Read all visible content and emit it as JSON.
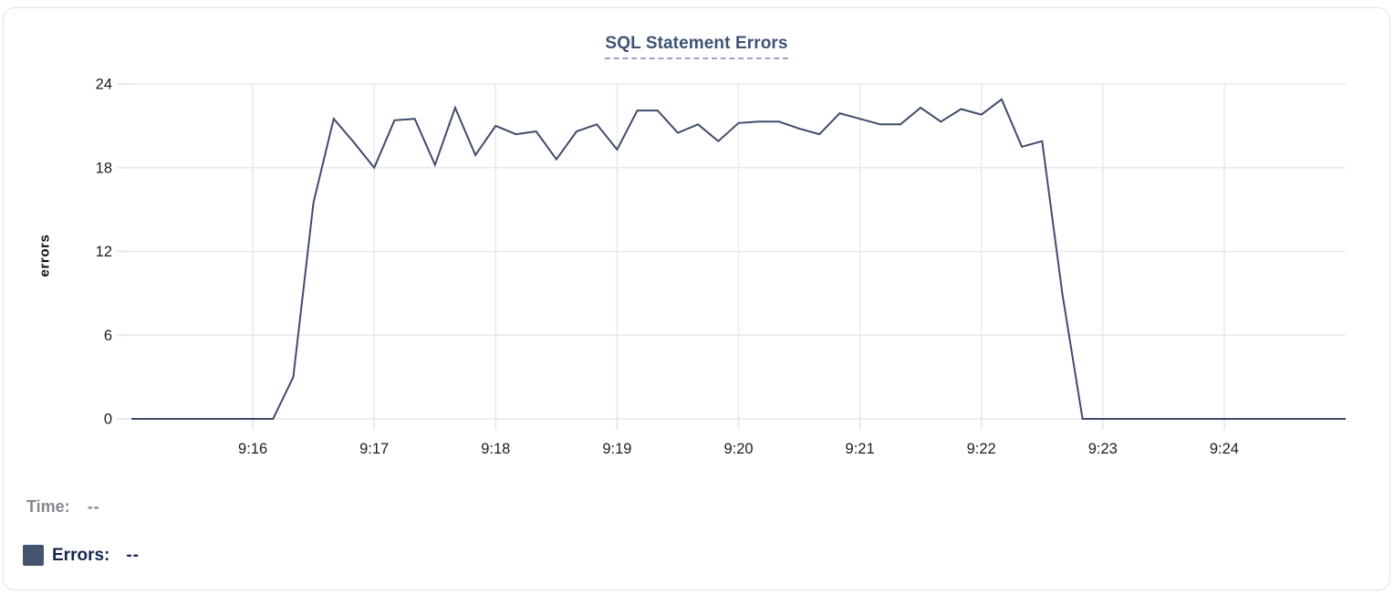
{
  "chart": {
    "title": "SQL Statement Errors",
    "y_axis_label": "errors"
  },
  "legend": {
    "time_label": "Time:",
    "time_value": "--",
    "errors_label": "Errors:",
    "errors_value": "--"
  },
  "colors": {
    "line": "#3e4d6a",
    "legend_swatch": "#44536e",
    "title_text": "#3f5377",
    "title_underline": "#9aa7c4",
    "gridline": "#e9e9eb",
    "axis_tick_text": "#1c1c1e",
    "y_axis_label_text": "#0d0d0d",
    "time_muted_text": "#85888e",
    "errors_navy_text": "#16274e",
    "card_border": "#e2e2e6"
  },
  "chart_data": {
    "type": "line",
    "title": "SQL Statement Errors",
    "xlabel": "",
    "ylabel": "errors",
    "ylim": [
      0,
      24
    ],
    "y_ticks": [
      0,
      6,
      12,
      18,
      24
    ],
    "x_tick_labels": [
      "9:16",
      "9:17",
      "9:18",
      "9:19",
      "9:20",
      "9:21",
      "9:22",
      "9:23",
      "9:24"
    ],
    "x_range": [
      "9:15:00",
      "9:25:00"
    ],
    "sample_interval_seconds": 10,
    "grid": true,
    "legend_position": "bottom-left",
    "series": [
      {
        "name": "Errors",
        "color": "#3e4d6a",
        "times": [
          "9:15:00",
          "9:15:10",
          "9:15:20",
          "9:15:30",
          "9:15:40",
          "9:15:50",
          "9:16:00",
          "9:16:10",
          "9:16:20",
          "9:16:30",
          "9:16:40",
          "9:16:50",
          "9:17:00",
          "9:17:10",
          "9:17:20",
          "9:17:30",
          "9:17:40",
          "9:17:50",
          "9:18:00",
          "9:18:10",
          "9:18:20",
          "9:18:30",
          "9:18:40",
          "9:18:50",
          "9:19:00",
          "9:19:10",
          "9:19:20",
          "9:19:30",
          "9:19:40",
          "9:19:50",
          "9:20:00",
          "9:20:10",
          "9:20:20",
          "9:20:30",
          "9:20:40",
          "9:20:50",
          "9:21:00",
          "9:21:10",
          "9:21:20",
          "9:21:30",
          "9:21:40",
          "9:21:50",
          "9:22:00",
          "9:22:10",
          "9:22:20",
          "9:22:30",
          "9:22:40",
          "9:22:50",
          "9:23:00",
          "9:23:10",
          "9:23:20",
          "9:23:30",
          "9:23:40",
          "9:23:50",
          "9:24:00",
          "9:24:10",
          "9:24:20",
          "9:24:30",
          "9:24:40",
          "9:24:50",
          "9:25:00"
        ],
        "values": [
          0,
          0,
          0,
          0,
          0,
          0,
          0,
          0,
          3,
          15.5,
          21.5,
          19.8,
          18,
          21.4,
          21.5,
          18.2,
          22.3,
          18.9,
          21,
          20.4,
          20.6,
          18.6,
          20.6,
          21.1,
          19.3,
          22.1,
          22.1,
          20.5,
          21.1,
          19.9,
          21.2,
          21.3,
          21.3,
          20.8,
          20.4,
          21.9,
          21.5,
          21.1,
          21.1,
          22.3,
          21.3,
          22.2,
          21.8,
          22.9,
          19.5,
          19.9,
          9,
          0,
          0,
          0,
          0,
          0,
          0,
          0,
          0,
          0,
          0,
          0,
          0,
          0,
          0
        ]
      }
    ]
  }
}
